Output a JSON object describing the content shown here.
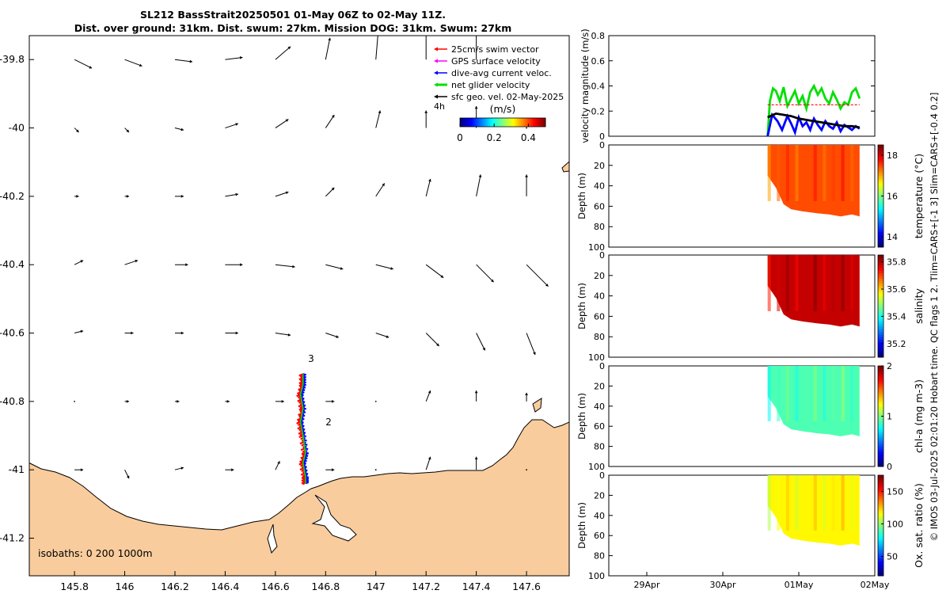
{
  "header": {
    "title_line1": "SL212 BassStrait20250501 01-May 06Z to 02-May 11Z.",
    "title_line2": "Dist. over ground: 31km. Dist. swum: 27km. Mission DOG: 31km. Swum: 27km"
  },
  "footer_text": "© IMOS 03-Jul-2025 02:01:20 Hobart time. QC flags 1  2. Tlim=CARS+[-1 3] Slim=CARS+[-0.4 0.2]",
  "colors": {
    "land": "#f9cc9d",
    "swim_vector": "#ff0000",
    "gps_velocity": "#ff00ff",
    "dive_avg": "#0000ff",
    "net_glider": "#00e000",
    "sfc_geo": "#000000"
  },
  "chart_data": [
    {
      "type": "map",
      "title": "SL212 BassStrait20250501 01-May 06Z to 02-May 11Z.",
      "xlim": [
        145.62,
        147.77
      ],
      "ylim": [
        -41.31,
        -39.73
      ],
      "xticks": [
        145.8,
        146,
        146.2,
        146.4,
        146.6,
        146.8,
        147,
        147.2,
        147.4,
        147.6
      ],
      "xtick_labels": [
        "145.8",
        "146",
        "146.2",
        "146.4",
        "146.6",
        "146.8",
        "147",
        "147.2",
        "147.4",
        "147.6"
      ],
      "yticks": [
        -39.8,
        -40,
        -40.2,
        -40.4,
        -40.6,
        -40.8,
        -41,
        -41.2
      ],
      "ytick_labels": [
        "-39.8",
        "-40",
        "-40.2",
        "-40.4",
        "-40.6",
        "-40.8",
        "-41",
        "-41.2"
      ],
      "legend": {
        "position": "top-right",
        "items": [
          "25cm/s swim vector",
          "GPS surface velocity",
          "dive-avg current veloc.",
          "net glider velocity",
          "sfc geo. vel. 02-May-2025"
        ],
        "interval_label": "4h",
        "colorbar_label": "(m/s)",
        "colorbar_ticks": [
          "0",
          "0.2",
          "0.4"
        ],
        "colorbar_range": [
          0,
          0.5
        ]
      },
      "isobaths_label": "isobaths: 0   200  1000m",
      "annotations": [
        {
          "text": "3",
          "lon": 146.73,
          "lat": -40.685
        },
        {
          "text": "2",
          "lon": 146.8,
          "lat": -40.87
        }
      ],
      "glider_track": [
        [
          146.71,
          -40.72
        ],
        [
          146.71,
          -40.75
        ],
        [
          146.7,
          -40.78
        ],
        [
          146.71,
          -40.82
        ],
        [
          146.7,
          -40.86
        ],
        [
          146.71,
          -40.9
        ],
        [
          146.72,
          -40.95
        ],
        [
          146.71,
          -40.98
        ],
        [
          146.72,
          -41.02
        ],
        [
          146.72,
          -41.04
        ]
      ],
      "current_lons": [
        145.8,
        146.0,
        146.2,
        146.4,
        146.6,
        146.8,
        147.0,
        147.2,
        147.4,
        147.6
      ],
      "current_lats": [
        -39.8,
        -40.0,
        -40.2,
        -40.4,
        -40.6,
        -40.8,
        -41.0
      ],
      "current_vectors": [
        [
          [
            0.04,
            -0.02
          ],
          [
            0.04,
            -0.015
          ],
          [
            0.04,
            -0.005
          ],
          [
            0.04,
            0.005
          ],
          [
            0.035,
            0.03
          ],
          [
            0.01,
            0.05
          ],
          [
            0.005,
            0.06
          ],
          [
            0,
            0.06
          ],
          [
            0,
            0.06
          ],
          [
            0,
            0
          ]
        ],
        [
          [
            0.01,
            -0.01
          ],
          [
            0.01,
            -0.01
          ],
          [
            0.02,
            -0.005
          ],
          [
            0.03,
            0.01
          ],
          [
            0.03,
            0.02
          ],
          [
            0.02,
            0.03
          ],
          [
            0.01,
            0.04
          ],
          [
            0,
            0.04
          ],
          [
            0,
            0.05
          ],
          [
            0,
            0
          ]
        ],
        [
          [
            0.01,
            0
          ],
          [
            0.01,
            0
          ],
          [
            0.02,
            0
          ],
          [
            0.03,
            0.005
          ],
          [
            0.03,
            0.01
          ],
          [
            0.02,
            0.02
          ],
          [
            0.02,
            0.03
          ],
          [
            0.01,
            0.04
          ],
          [
            0.01,
            0.05
          ],
          [
            0,
            0.05
          ]
        ],
        [
          [
            0.02,
            0.01
          ],
          [
            0.03,
            0.01
          ],
          [
            0.03,
            0
          ],
          [
            0.04,
            0
          ],
          [
            0.045,
            -0.005
          ],
          [
            0.04,
            -0.01
          ],
          [
            0.04,
            -0.01
          ],
          [
            0.04,
            -0.03
          ],
          [
            0.04,
            -0.04
          ],
          [
            0.05,
            -0.05
          ]
        ],
        [
          [
            0.02,
            0.005
          ],
          [
            0.02,
            0
          ],
          [
            0.02,
            0
          ],
          [
            0.03,
            0
          ],
          [
            0.035,
            -0.005
          ],
          [
            0.03,
            -0.01
          ],
          [
            0.03,
            -0.01
          ],
          [
            0.03,
            -0.03
          ],
          [
            0.02,
            -0.04
          ],
          [
            0.02,
            -0.05
          ]
        ],
        [
          [
            0,
            0
          ],
          [
            0.01,
            0
          ],
          [
            0.01,
            0
          ],
          [
            0.01,
            0
          ],
          [
            0.02,
            0
          ],
          [
            0.02,
            0
          ],
          [
            0,
            0
          ],
          [
            0.01,
            0.025
          ],
          [
            0,
            0.025
          ],
          [
            0,
            0.02
          ]
        ],
        [
          [
            0.02,
            0
          ],
          [
            0.01,
            -0.02
          ],
          [
            0.02,
            0.005
          ],
          [
            0.02,
            0
          ],
          [
            0.01,
            0.02
          ],
          [
            0.02,
            0
          ],
          [
            0,
            0
          ],
          [
            0.01,
            0.03
          ],
          [
            0,
            0.03
          ],
          [
            0,
            0
          ]
        ]
      ]
    },
    {
      "type": "line",
      "ylabel": "velocity magnitude (m/s)",
      "ylim": [
        0,
        0.8
      ],
      "yticks": [
        "0",
        "0.2",
        "0.4",
        "0.6",
        "0.8"
      ],
      "series": [
        {
          "name": "net glider velocity",
          "color": "#00e000",
          "t": [
            3.09,
            3.12,
            3.16,
            3.2,
            3.25,
            3.3,
            3.35,
            3.4,
            3.45,
            3.5,
            3.55,
            3.6,
            3.65,
            3.7,
            3.75,
            3.8,
            3.85,
            3.9,
            3.95,
            4.0,
            4.05,
            4.1,
            4.15,
            4.2,
            4.25,
            4.3
          ],
          "values": [
            0.0,
            0.28,
            0.38,
            0.36,
            0.28,
            0.39,
            0.24,
            0.3,
            0.36,
            0.26,
            0.32,
            0.22,
            0.35,
            0.4,
            0.33,
            0.38,
            0.3,
            0.26,
            0.35,
            0.29,
            0.22,
            0.27,
            0.25,
            0.35,
            0.38,
            0.3
          ]
        },
        {
          "name": "dive-avg current veloc.",
          "color": "#0000ff",
          "t": [
            3.09,
            3.15,
            3.22,
            3.28,
            3.35,
            3.4,
            3.45,
            3.5,
            3.55,
            3.6,
            3.65,
            3.7,
            3.75,
            3.8,
            3.85,
            3.9,
            3.95,
            4.0,
            4.05,
            4.1,
            4.15,
            4.2,
            4.25,
            4.3
          ],
          "values": [
            0.0,
            0.17,
            0.12,
            0.05,
            0.16,
            0.1,
            0.03,
            0.15,
            0.08,
            0.11,
            0.05,
            0.14,
            0.09,
            0.05,
            0.12,
            0.08,
            0.06,
            0.11,
            0.04,
            0.09,
            0.07,
            0.05,
            0.08,
            0.06
          ]
        },
        {
          "name": "sfc geo. vel.",
          "color": "#000000",
          "t": [
            3.09,
            3.2,
            3.3,
            3.4,
            3.5,
            3.6,
            3.7,
            3.8,
            3.9,
            4.0,
            4.1,
            4.2,
            4.3
          ],
          "values": [
            0.15,
            0.18,
            0.17,
            0.16,
            0.14,
            0.13,
            0.12,
            0.11,
            0.1,
            0.09,
            0.08,
            0.08,
            0.07
          ]
        },
        {
          "name": "25cm/s swim vector",
          "color": "#ff0000",
          "t": [
            3.09,
            4.3
          ],
          "values": [
            0.25,
            0.25
          ]
        }
      ]
    },
    {
      "type": "heatmap",
      "variable": "temperature",
      "ylabel": "Depth (m)",
      "clabel": "temperature (°C)",
      "clim": [
        13.5,
        18.5
      ],
      "cticks": [
        "14",
        "16",
        "18"
      ],
      "cscale": "jet",
      "typical_value": 17.5,
      "depth_ylim": [
        0,
        100
      ],
      "depth_ticks": [
        "0",
        "20",
        "40",
        "60",
        "80",
        "100"
      ]
    },
    {
      "type": "heatmap",
      "variable": "salinity",
      "ylabel": "Depth (m)",
      "clabel": "salinity",
      "clim": [
        35.1,
        35.85
      ],
      "cticks": [
        "35.2",
        "35.4",
        "35.6",
        "35.8"
      ],
      "cscale": "jet",
      "typical_value": 35.8,
      "depth_ylim": [
        0,
        100
      ],
      "depth_ticks": [
        "0",
        "20",
        "40",
        "60",
        "80",
        "100"
      ]
    },
    {
      "type": "heatmap",
      "variable": "chl-a",
      "ylabel": "Depth (m)",
      "clabel": "chl-a (mg m-3)",
      "clim": [
        0,
        2
      ],
      "cticks": [
        "0",
        "1",
        "2"
      ],
      "cscale": "jet",
      "typical_value": 0.9,
      "depth_ylim": [
        0,
        100
      ],
      "depth_ticks": [
        "0",
        "20",
        "40",
        "60",
        "80",
        "100"
      ]
    },
    {
      "type": "heatmap",
      "variable": "oxygen",
      "ylabel": "Depth (m)",
      "clabel": "Ox. sat. ratio (%)",
      "clim": [
        20,
        175
      ],
      "cticks": [
        "50",
        "100",
        "150"
      ],
      "cscale": "jet",
      "typical_value": 118,
      "depth_ylim": [
        0,
        100
      ],
      "depth_ticks": [
        "0",
        "20",
        "40",
        "60",
        "80",
        "100"
      ],
      "time_ticks": [
        "29Apr",
        "30Apr",
        "01May",
        "02May"
      ],
      "time_range": [
        1.0,
        4.5
      ]
    }
  ]
}
